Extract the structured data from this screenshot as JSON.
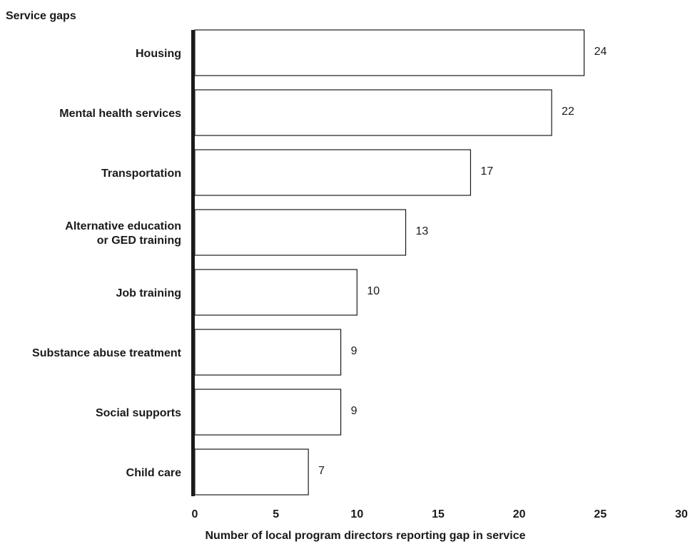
{
  "chart_data": {
    "type": "bar",
    "orientation": "horizontal",
    "ylabel": "Service gaps",
    "xlabel": "Number of local program directors reporting gap in service",
    "categories": [
      [
        "Housing"
      ],
      [
        "Mental health services"
      ],
      [
        "Transportation"
      ],
      [
        "Alternative education",
        "or GED training"
      ],
      [
        "Job training"
      ],
      [
        "Substance abuse treatment"
      ],
      [
        "Social supports"
      ],
      [
        "Child care"
      ]
    ],
    "values": [
      24,
      22,
      17,
      13,
      10,
      9,
      9,
      7
    ],
    "xlim": [
      0,
      30
    ],
    "xticks": [
      "0",
      "5",
      "10",
      "15",
      "20",
      "25",
      "30"
    ],
    "grid": false,
    "bar_fill": "#ffffff",
    "bar_stroke": "#1a1a1a"
  }
}
